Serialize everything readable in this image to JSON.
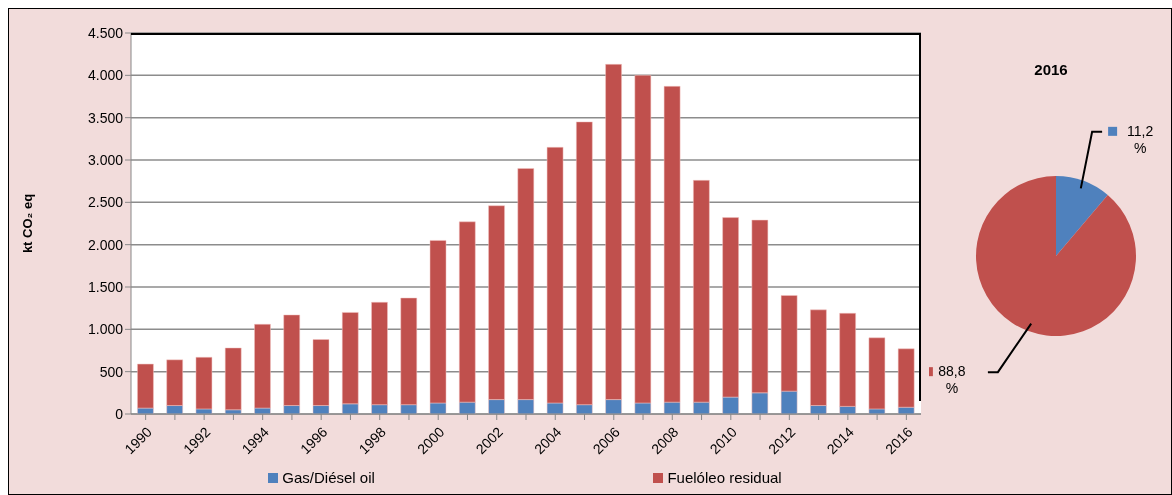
{
  "chart_data": [
    {
      "type": "bar",
      "ylabel": "kt CO₂ eq",
      "stacked": true,
      "grid": "y",
      "legend": "bottom",
      "categories": [
        "1990",
        null,
        "1992",
        null,
        "1994",
        null,
        "1996",
        null,
        "1998",
        null,
        "2000",
        null,
        "2002",
        null,
        "2004",
        null,
        "2006",
        null,
        "2008",
        null,
        "2010",
        null,
        "2012",
        null,
        "2014",
        null,
        "2016"
      ],
      "series": [
        {
          "name": "Gas/Diésel oil",
          "color": "#4f81bd",
          "values": [
            70,
            100,
            60,
            50,
            70,
            100,
            100,
            120,
            110,
            110,
            130,
            140,
            170,
            170,
            130,
            110,
            170,
            130,
            140,
            140,
            200,
            250,
            270,
            100,
            90,
            60,
            80
          ]
        },
        {
          "name": "Fuelóleo residual",
          "color": "#c0504d",
          "values": [
            520,
            540,
            610,
            730,
            990,
            1070,
            780,
            1080,
            1210,
            1260,
            1920,
            2130,
            2290,
            2730,
            3020,
            3340,
            3960,
            3870,
            3730,
            2620,
            2120,
            2040,
            1130,
            1130,
            1100,
            840,
            690
          ]
        }
      ],
      "ylim": [
        0,
        4500
      ],
      "yticks": [
        0,
        500,
        {
          "value": 1000,
          "label": "1.000"
        },
        {
          "value": 1500,
          "label": "1.500"
        },
        {
          "value": 2000,
          "label": "2.000"
        },
        {
          "value": 2500,
          "label": "2.500"
        },
        {
          "value": 3000,
          "label": "3.000"
        },
        {
          "value": 3500,
          "label": "3.500"
        },
        {
          "value": 4000,
          "label": "4.000"
        },
        {
          "value": 4500,
          "label": "4.500"
        }
      ]
    },
    {
      "type": "pie",
      "title": "2016",
      "categories": [
        null,
        null
      ],
      "values": [
        11.2,
        88.8
      ],
      "colors": [
        "#4f81bd",
        "#c0504d"
      ],
      "value_labels": [
        "11,2 %",
        "88,8 %"
      ]
    }
  ]
}
